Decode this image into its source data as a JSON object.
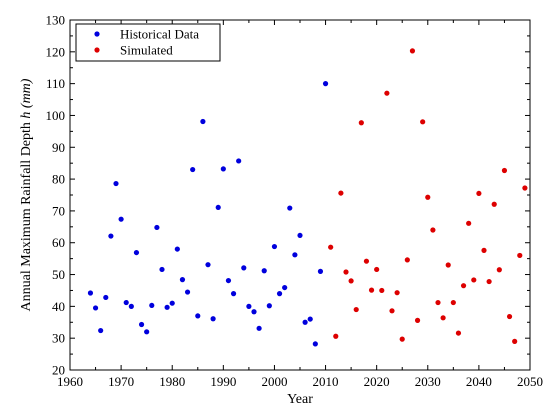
{
  "chart_data": {
    "type": "scatter",
    "xlabel": "Year",
    "ylabel_main": "Annual Maximum Rainfall Depth ",
    "ylabel_var": "h",
    "ylabel_unit": "(mm)",
    "xlim": [
      1960,
      2050
    ],
    "ylim": [
      20,
      130
    ],
    "xticks": [
      1960,
      1970,
      1980,
      1990,
      2000,
      2010,
      2020,
      2030,
      2040,
      2050
    ],
    "yticks": [
      20,
      30,
      40,
      50,
      60,
      70,
      80,
      90,
      100,
      110,
      120,
      130
    ],
    "legend_position": "top-left",
    "grid": false,
    "series": [
      {
        "name": "Historical Data",
        "color": "#0000dd",
        "x": [
          1964,
          1965,
          1966,
          1967,
          1968,
          1969,
          1970,
          1971,
          1972,
          1973,
          1974,
          1975,
          1976,
          1977,
          1978,
          1979,
          1980,
          1981,
          1982,
          1983,
          1984,
          1985,
          1986,
          1987,
          1988,
          1989,
          1990,
          1991,
          1992,
          1993,
          1994,
          1995,
          1996,
          1997,
          1998,
          1999,
          2000,
          2001,
          2002,
          2003,
          2004,
          2005,
          2006,
          2007,
          2008,
          2009,
          2010
        ],
        "y": [
          44.2,
          39.5,
          32.4,
          42.8,
          62.1,
          78.6,
          67.4,
          41.2,
          40.0,
          56.9,
          34.3,
          32.0,
          40.3,
          64.8,
          51.6,
          39.7,
          41.0,
          58.0,
          48.4,
          44.5,
          83.0,
          37.0,
          98.1,
          53.1,
          36.1,
          71.1,
          83.2,
          48.1,
          44.0,
          85.7,
          52.1,
          40.0,
          38.3,
          33.1,
          51.2,
          40.2,
          58.8,
          44.0,
          45.9,
          70.9,
          56.2,
          62.3,
          35.0,
          36.0,
          28.2,
          51.0,
          110.0
        ]
      },
      {
        "name": "Simulated",
        "color": "#dd0000",
        "x": [
          2011,
          2012,
          2013,
          2014,
          2015,
          2016,
          2017,
          2018,
          2019,
          2020,
          2021,
          2022,
          2023,
          2024,
          2025,
          2026,
          2027,
          2028,
          2029,
          2030,
          2031,
          2032,
          2033,
          2034,
          2035,
          2036,
          2037,
          2038,
          2039,
          2040,
          2041,
          2042,
          2043,
          2044,
          2045,
          2046,
          2047,
          2048,
          2049
        ],
        "y": [
          58.6,
          30.6,
          75.6,
          50.8,
          48.0,
          39.0,
          97.7,
          54.2,
          45.1,
          51.6,
          45.0,
          107.0,
          38.6,
          44.3,
          29.7,
          54.6,
          120.3,
          35.6,
          98.0,
          74.3,
          64.0,
          41.2,
          36.4,
          53.0,
          41.2,
          31.6,
          46.5,
          66.1,
          48.3,
          75.5,
          57.6,
          47.8,
          72.1,
          51.5,
          82.7,
          36.8,
          29.0,
          56.0,
          77.2
        ]
      }
    ]
  }
}
